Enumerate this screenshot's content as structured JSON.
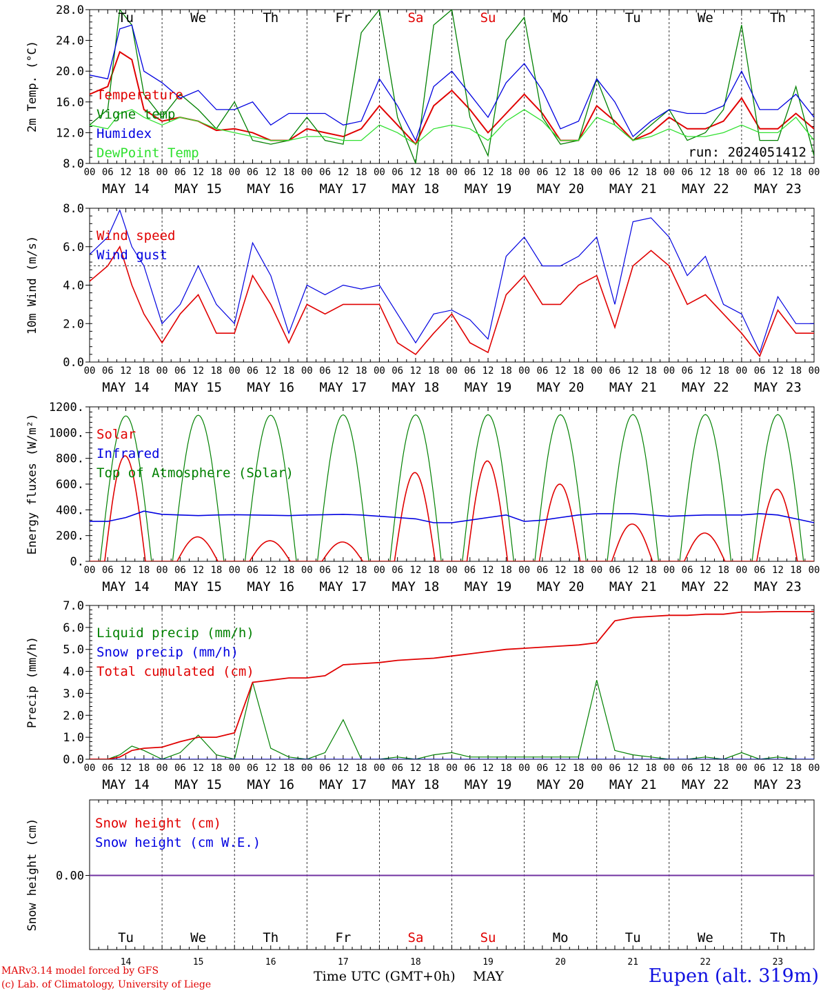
{
  "colors": {
    "red": "#e00000",
    "green": "#008000",
    "blue": "#0000e0",
    "lightgreen": "#30e030",
    "purple": "#7030a0",
    "black": "#000000"
  },
  "days": [
    "Tu",
    "We",
    "Th",
    "Fr",
    "Sa",
    "Su",
    "Mo",
    "Tu",
    "We",
    "Th"
  ],
  "weekend_day_indices": [
    4,
    5
  ],
  "dates": [
    "MAY 14",
    "MAY 15",
    "MAY 16",
    "MAY 17",
    "MAY 18",
    "MAY 19",
    "MAY 20",
    "MAY 21",
    "MAY 22",
    "MAY 23"
  ],
  "day_numbers": [
    "14",
    "15",
    "16",
    "17",
    "18",
    "19",
    "20",
    "21",
    "22",
    "23"
  ],
  "hour_ticks": [
    "00",
    "06",
    "12",
    "18"
  ],
  "final_hour": "00",
  "footer": {
    "model": "MARv3.14 model forced by GFS",
    "credit": "(c) Lab. of Climatology, University of Liege",
    "xlabel": "Time UTC (GMT+0h)",
    "month": "MAY",
    "station": "Eupen (alt. 319m)"
  },
  "chart_data": [
    {
      "type": "line",
      "ylabel": "2m Temp. (°C)",
      "ylim": [
        8,
        28
      ],
      "yticks": [
        "8.0",
        "12.0",
        "16.0",
        "20.0",
        "24.0",
        "28.0"
      ],
      "annotation": "run: 2024051412",
      "x_hours": [
        0,
        6,
        10,
        14,
        18,
        24,
        30,
        36,
        42,
        48,
        54,
        60,
        66,
        72,
        78,
        84,
        90,
        96,
        102,
        108,
        114,
        120,
        126,
        132,
        138,
        144,
        150,
        156,
        162,
        168,
        174,
        180,
        186,
        192,
        198,
        204,
        210,
        216,
        222,
        228,
        234,
        240
      ],
      "series": [
        {
          "name": "Temperature",
          "color": "red",
          "values": [
            17,
            18,
            22.5,
            21.5,
            15,
            13.5,
            14,
            13.5,
            12.3,
            12.5,
            12,
            11,
            11,
            12.5,
            12,
            11.5,
            12.5,
            15.5,
            13,
            10.5,
            15.5,
            17.5,
            15,
            12,
            14.5,
            17,
            14.5,
            11,
            11,
            15.5,
            13.5,
            11,
            12,
            14,
            12.5,
            12.5,
            13.5,
            16.5,
            12.5,
            12.5,
            14.5,
            12.5
          ]
        },
        {
          "name": "Vigne temp",
          "color": "green",
          "values": [
            13,
            15,
            28,
            26,
            17,
            14,
            17,
            15,
            12.5,
            16,
            11,
            10.5,
            11,
            14,
            11,
            10.5,
            25,
            28,
            14,
            8,
            26,
            28,
            14,
            9,
            24,
            27,
            14,
            10.5,
            11,
            19,
            13,
            11,
            13,
            15,
            11,
            12,
            15,
            26,
            11,
            11,
            18,
            9
          ]
        },
        {
          "name": "Humidex",
          "color": "blue",
          "values": [
            19.5,
            19,
            25.5,
            26,
            20,
            18.5,
            16.5,
            17.5,
            15,
            15,
            16,
            13,
            14.5,
            14.5,
            14.5,
            13,
            13.5,
            19,
            15.5,
            11,
            18,
            20,
            17,
            14,
            18.5,
            21,
            17.5,
            12.5,
            13.5,
            19,
            16,
            11.5,
            13.5,
            15,
            14.5,
            14.5,
            15.5,
            20,
            15,
            15,
            17,
            14
          ]
        },
        {
          "name": "DewPoint Temp",
          "color": "lightgreen",
          "values": [
            13,
            12.5,
            14.5,
            15,
            14,
            13,
            14,
            13.5,
            12.5,
            12,
            11.5,
            11,
            11,
            11.5,
            11.5,
            11,
            11,
            13,
            12,
            10.5,
            12.5,
            13,
            12.5,
            11,
            13.5,
            15,
            13.5,
            11,
            11,
            14,
            13,
            11,
            11.5,
            12.5,
            11.5,
            11.5,
            12,
            13,
            12,
            12,
            14,
            11
          ]
        }
      ]
    },
    {
      "type": "line",
      "ylabel": "10m Wind (m/s)",
      "ylim": [
        0,
        8
      ],
      "yticks": [
        "0.0",
        "2.0",
        "4.0",
        "6.0",
        "8.0"
      ],
      "reference_line": 5,
      "x_hours": [
        0,
        6,
        10,
        14,
        18,
        24,
        30,
        36,
        42,
        48,
        54,
        60,
        66,
        72,
        78,
        84,
        90,
        96,
        102,
        108,
        114,
        120,
        126,
        132,
        138,
        144,
        150,
        156,
        162,
        168,
        174,
        180,
        186,
        192,
        198,
        204,
        210,
        216,
        222,
        228,
        234,
        240
      ],
      "series": [
        {
          "name": "Wind speed",
          "color": "red",
          "values": [
            4.2,
            5,
            6,
            4,
            2.5,
            1,
            2.5,
            3.5,
            1.5,
            1.5,
            4.5,
            3,
            1,
            3,
            2.5,
            3,
            3,
            3,
            1,
            0.4,
            1.5,
            2.5,
            1,
            0.5,
            3.5,
            4.5,
            3,
            3,
            4,
            4.5,
            1.8,
            5,
            5.8,
            5,
            3,
            3.5,
            2.5,
            1.5,
            0.3,
            2.7,
            1.5,
            1.5
          ]
        },
        {
          "name": "Wind gust",
          "color": "blue",
          "values": [
            5.6,
            6.5,
            7.9,
            6,
            5,
            2,
            3,
            5,
            3,
            2,
            6.2,
            4.5,
            1.5,
            4,
            3.5,
            4,
            3.8,
            4,
            2.5,
            1,
            2.5,
            2.7,
            2.2,
            1.2,
            5.5,
            6.5,
            5,
            5,
            5.5,
            6.5,
            3,
            7.3,
            7.5,
            6.5,
            4.5,
            5.5,
            3,
            2.5,
            0.5,
            3.4,
            2,
            2
          ]
        }
      ]
    },
    {
      "type": "line",
      "ylabel": "Energy fluxes (W/m²)",
      "ylim": [
        0,
        1200
      ],
      "yticks": [
        "0.",
        "200.",
        "400.",
        "600.",
        "800.",
        "1000.",
        "1200."
      ],
      "daily_toa_peak": [
        1130,
        1135,
        1135,
        1138,
        1138,
        1139,
        1139,
        1140,
        1140,
        1140
      ],
      "daily_solar_peak": [
        820,
        190,
        160,
        150,
        690,
        780,
        600,
        290,
        220,
        560
      ],
      "infrared_hourly": [
        310,
        310,
        340,
        390,
        365,
        360,
        355,
        360,
        362,
        360,
        358,
        355,
        360,
        362,
        365,
        360,
        350,
        340,
        330,
        300,
        300,
        320,
        340,
        360,
        310,
        320,
        340,
        360,
        370,
        370,
        370,
        360,
        350,
        355,
        360,
        360,
        360,
        370,
        360,
        330,
        300
      ]
    },
    {
      "type": "line",
      "ylabel": "Precip (mm/h)",
      "ylim": [
        0,
        7
      ],
      "yticks": [
        "0.0",
        "1.0",
        "2.0",
        "3.0",
        "4.0",
        "5.0",
        "6.0",
        "7.0"
      ],
      "x_hours": [
        0,
        6,
        10,
        14,
        18,
        24,
        30,
        36,
        42,
        48,
        54,
        60,
        66,
        72,
        78,
        84,
        90,
        96,
        102,
        108,
        114,
        120,
        126,
        132,
        138,
        144,
        150,
        156,
        162,
        168,
        174,
        180,
        186,
        192,
        198,
        204,
        210,
        216,
        222,
        228,
        234,
        240
      ],
      "series": [
        {
          "name": "Liquid precip (mm/h)",
          "color": "green",
          "values": [
            0,
            0,
            0.2,
            0.6,
            0.4,
            0,
            0.3,
            1.1,
            0.2,
            0,
            3.5,
            0.5,
            0.1,
            0,
            0.3,
            1.8,
            0,
            0,
            0.1,
            0,
            0.2,
            0.3,
            0.1,
            0.1,
            0.1,
            0.1,
            0.1,
            0.1,
            0.1,
            3.6,
            0.4,
            0.2,
            0.1,
            0,
            0,
            0.1,
            0,
            0.3,
            0,
            0.1,
            0,
            0
          ]
        },
        {
          "name": "Snow precip (mm/h)",
          "color": "blue",
          "values": [
            0,
            0,
            0,
            0,
            0,
            0,
            0,
            0,
            0,
            0,
            0,
            0,
            0,
            0,
            0,
            0,
            0,
            0,
            0,
            0,
            0,
            0,
            0,
            0,
            0,
            0,
            0,
            0,
            0,
            0,
            0,
            0,
            0,
            0,
            0,
            0,
            0,
            0,
            0,
            0,
            0,
            0
          ]
        },
        {
          "name": "Total cumulated (cm)",
          "color": "red",
          "values": [
            0,
            0,
            0.1,
            0.4,
            0.5,
            0.55,
            0.8,
            1,
            1,
            1.2,
            3.5,
            3.6,
            3.7,
            3.7,
            3.8,
            4.3,
            4.35,
            4.4,
            4.5,
            4.55,
            4.6,
            4.7,
            4.8,
            4.9,
            5,
            5.05,
            5.1,
            5.15,
            5.2,
            5.3,
            6.3,
            6.45,
            6.5,
            6.55,
            6.55,
            6.6,
            6.6,
            6.7,
            6.7,
            6.72,
            6.72,
            6.72
          ]
        }
      ]
    },
    {
      "type": "line",
      "ylabel": "Snow height (cm)",
      "yticks": [
        "0.00"
      ],
      "series": [
        {
          "name": "Snow height (cm)",
          "color": "red",
          "values": [
            0,
            0
          ]
        },
        {
          "name": "Snow height (cm W.E.)",
          "color": "blue",
          "values": [
            0,
            0
          ]
        }
      ]
    }
  ]
}
